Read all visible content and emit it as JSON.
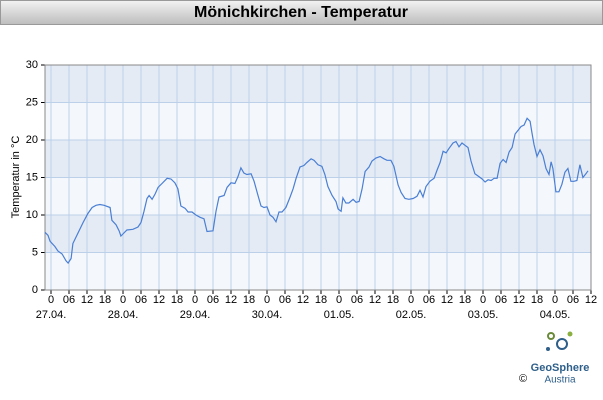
{
  "chart_data": {
    "type": "line",
    "title": "Mönichkirchen - Temperatur",
    "ylabel": "Temperatur in °C",
    "color": "#4a7fd4",
    "grid": true,
    "ylim": [
      0,
      30
    ],
    "yticks": [
      0,
      5,
      10,
      15,
      20,
      25,
      30
    ],
    "xlim": [
      -2,
      180
    ],
    "xticks": [
      {
        "value": 0,
        "label": "0"
      },
      {
        "value": 6,
        "label": "06"
      },
      {
        "value": 12,
        "label": "12"
      },
      {
        "value": 18,
        "label": "18"
      },
      {
        "value": 24,
        "label": "0"
      },
      {
        "value": 30,
        "label": "06"
      },
      {
        "value": 36,
        "label": "12"
      },
      {
        "value": 42,
        "label": "18"
      },
      {
        "value": 48,
        "label": "0"
      },
      {
        "value": 54,
        "label": "06"
      },
      {
        "value": 60,
        "label": "12"
      },
      {
        "value": 66,
        "label": "18"
      },
      {
        "value": 72,
        "label": "0"
      },
      {
        "value": 78,
        "label": "06"
      },
      {
        "value": 84,
        "label": "12"
      },
      {
        "value": 90,
        "label": "18"
      },
      {
        "value": 96,
        "label": "0"
      },
      {
        "value": 102,
        "label": "06"
      },
      {
        "value": 108,
        "label": "12"
      },
      {
        "value": 114,
        "label": "18"
      },
      {
        "value": 120,
        "label": "0"
      },
      {
        "value": 126,
        "label": "06"
      },
      {
        "value": 132,
        "label": "12"
      },
      {
        "value": 138,
        "label": "18"
      },
      {
        "value": 144,
        "label": "0"
      },
      {
        "value": 150,
        "label": "06"
      },
      {
        "value": 156,
        "label": "12"
      },
      {
        "value": 162,
        "label": "18"
      },
      {
        "value": 168,
        "label": "0"
      },
      {
        "value": 174,
        "label": "06"
      },
      {
        "value": 180,
        "label": "12"
      }
    ],
    "day_labels": [
      {
        "value": 0,
        "label": "27.04."
      },
      {
        "value": 24,
        "label": "28.04."
      },
      {
        "value": 48,
        "label": "29.04."
      },
      {
        "value": 72,
        "label": "30.04."
      },
      {
        "value": 96,
        "label": "01.05."
      },
      {
        "value": 120,
        "label": "02.05."
      },
      {
        "value": 144,
        "label": "03.05."
      },
      {
        "value": 168,
        "label": "04.05."
      }
    ],
    "x": [
      -2,
      -1,
      -0.3,
      1.3,
      2.3,
      3.7,
      5,
      5.7,
      6.7,
      7.3,
      9,
      10.7,
      12.3,
      13.7,
      15,
      16.3,
      17.7,
      19.7,
      20.3,
      21.7,
      22.7,
      23.3,
      24.3,
      25.3,
      27.3,
      29,
      30,
      31,
      32,
      32.7,
      33.7,
      34.7,
      35.7,
      37,
      38.7,
      40,
      41.3,
      42.3,
      43.3,
      44.7,
      45.7,
      47,
      48.3,
      49.7,
      51,
      52,
      54,
      55,
      56,
      57.7,
      58.7,
      60,
      61.3,
      62.3,
      63.3,
      64.3,
      65.3,
      66.7,
      67.7,
      69,
      70,
      71,
      72,
      73,
      74,
      75,
      76,
      77,
      78.3,
      79.7,
      80.7,
      81.7,
      83,
      84.3,
      85.3,
      86.7,
      87.7,
      89,
      90.3,
      91.3,
      92.3,
      93.7,
      95,
      95.7,
      96.7,
      97.3,
      98.3,
      99.3,
      100.7,
      101.7,
      102.7,
      103.7,
      104.7,
      106,
      107,
      108.3,
      109.7,
      111,
      112,
      113.3,
      114.3,
      115.7,
      116.7,
      118,
      119.3,
      120.7,
      122,
      123,
      124,
      125,
      126.3,
      127.7,
      128.7,
      129.7,
      130.7,
      131.7,
      132.7,
      134,
      135,
      136,
      137,
      138,
      139,
      140,
      141.3,
      142.7,
      143.7,
      144.7,
      145.7,
      146.7,
      147.7,
      148.7,
      149.7,
      150.7,
      151.7,
      152.7,
      153.7,
      154.7,
      155.7,
      156.7,
      157.7,
      158.7,
      159.7,
      160.3,
      161,
      162,
      163,
      164,
      165,
      166,
      166.7,
      167.3,
      168.3,
      169.3,
      170.3,
      171.3,
      172.3,
      173.3,
      174.3,
      175.3,
      176.3,
      177.3,
      178.3,
      179
    ],
    "values": [
      7.7,
      7.3,
      6.5,
      5.8,
      5.2,
      4.8,
      3.9,
      3.6,
      4.2,
      6.2,
      7.6,
      9,
      10.2,
      11,
      11.3,
      11.4,
      11.3,
      11,
      9.3,
      8.7,
      7.9,
      7.2,
      7.6,
      8,
      8.1,
      8.4,
      9,
      10.5,
      12.2,
      12.6,
      12.1,
      12.8,
      13.7,
      14.2,
      14.9,
      14.8,
      14.3,
      13.5,
      11.2,
      10.9,
      10.4,
      10.4,
      10,
      9.7,
      9.5,
      7.8,
      7.9,
      10.5,
      12.4,
      12.6,
      13.7,
      14.3,
      14.2,
      15.1,
      16.3,
      15.6,
      15.4,
      15.5,
      14.5,
      12.6,
      11.2,
      11,
      11.1,
      10,
      9.7,
      9.1,
      10.4,
      10.4,
      11,
      12.4,
      13.5,
      14.9,
      16.4,
      16.6,
      17,
      17.5,
      17.3,
      16.7,
      16.5,
      15.4,
      13.8,
      12.6,
      11.8,
      10.8,
      10.5,
      12.3,
      11.6,
      11.6,
      12.1,
      11.7,
      11.8,
      13.5,
      15.8,
      16.4,
      17.2,
      17.6,
      17.8,
      17.5,
      17.3,
      17.3,
      16.5,
      14,
      13,
      12.2,
      12.1,
      12.2,
      12.5,
      13.3,
      12.4,
      13.8,
      14.5,
      14.9,
      16,
      17,
      18.5,
      18.3,
      18.9,
      19.6,
      19.8,
      19.1,
      19.6,
      19.3,
      19,
      17.2,
      15.5,
      15.1,
      14.8,
      14.4,
      14.7,
      14.6,
      14.9,
      14.9,
      16.9,
      17.4,
      17,
      18.4,
      19,
      20.8,
      21.3,
      21.8,
      22,
      22.9,
      22.5,
      21,
      19.4,
      17.8,
      18.7,
      17.9,
      16.2,
      15.4,
      17.1,
      16.2,
      13.1,
      13.1,
      14.1,
      15.7,
      16.2,
      14.5,
      14.5,
      14.6,
      16.7,
      15,
      15.5,
      15.9
    ]
  },
  "logo": {
    "name": "GeoSphere",
    "sub": "Austria",
    "copyright": "©"
  }
}
